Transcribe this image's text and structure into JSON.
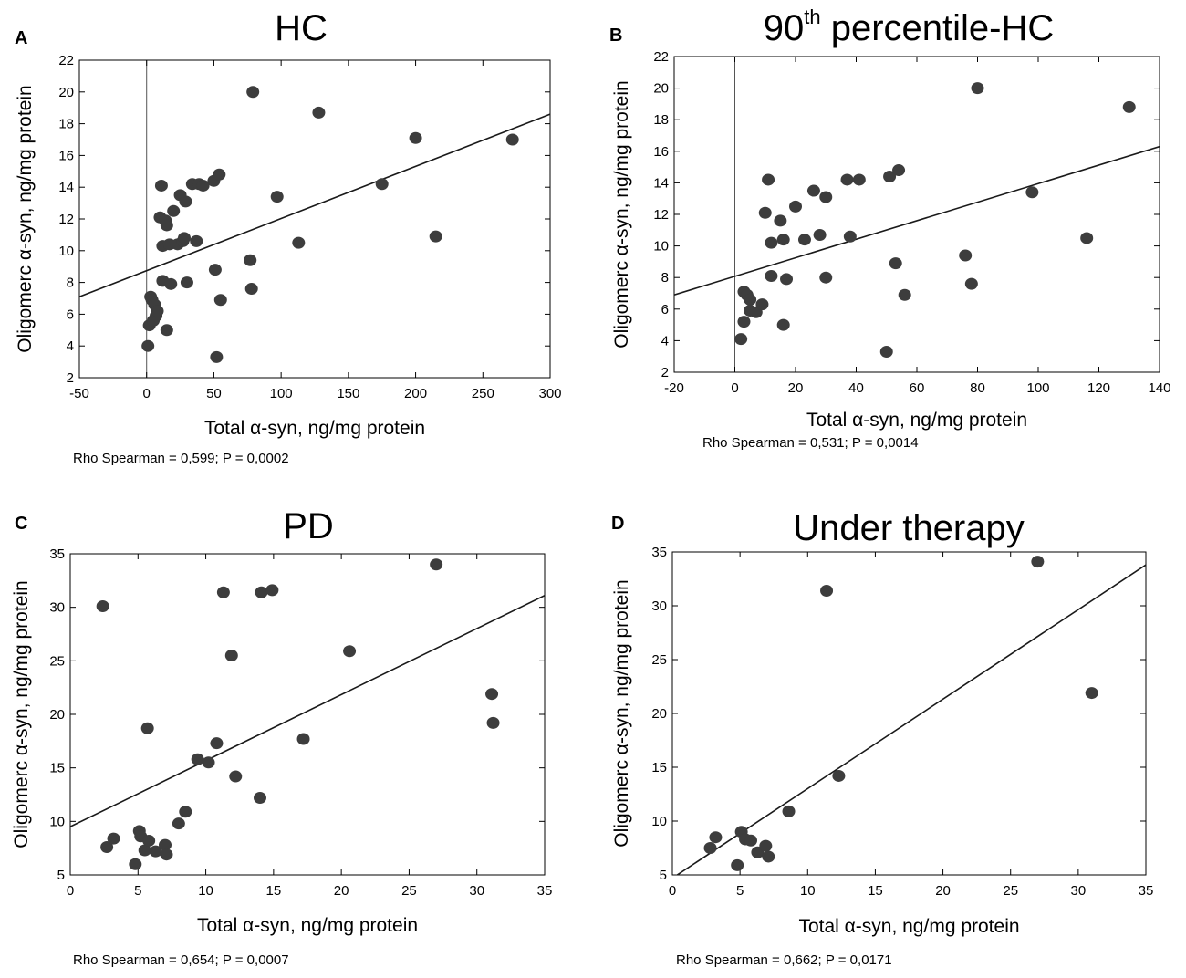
{
  "figure": {
    "background": "#ffffff"
  },
  "style": {
    "point_color": "#3d3d3d",
    "line_color": "#1a1a1a"
  },
  "chart_data": [
    {
      "type": "scatter",
      "panel": "A",
      "title": "HC",
      "title_superscript": "",
      "title_suffix": "",
      "xlabel": "Total α-syn, ng/mg protein",
      "ylabel": "Oligomerc α-syn, ng/mg protein",
      "xlim": [
        -50,
        300
      ],
      "ylim": [
        2,
        22
      ],
      "xticks": [
        -50,
        0,
        50,
        100,
        150,
        200,
        250,
        300
      ],
      "yticks": [
        2,
        4,
        6,
        8,
        10,
        12,
        14,
        16,
        18,
        20,
        22
      ],
      "zero_line_x": 0,
      "grid": false,
      "annotation": "Rho Spearman = 0,599; P = 0,0002",
      "regression": {
        "x": [
          -50,
          300
        ],
        "y": [
          7.1,
          18.6
        ]
      },
      "points": [
        [
          1,
          4.0
        ],
        [
          2,
          5.3
        ],
        [
          3,
          7.1
        ],
        [
          4,
          6.9
        ],
        [
          5,
          5.6
        ],
        [
          6,
          6.6
        ],
        [
          7,
          5.9
        ],
        [
          8,
          6.2
        ],
        [
          10,
          12.1
        ],
        [
          11,
          14.1
        ],
        [
          12,
          10.3
        ],
        [
          12,
          8.1
        ],
        [
          14,
          11.9
        ],
        [
          15,
          11.6
        ],
        [
          15,
          5.0
        ],
        [
          17,
          10.4
        ],
        [
          18,
          7.9
        ],
        [
          20,
          12.5
        ],
        [
          23,
          10.4
        ],
        [
          25,
          13.5
        ],
        [
          27,
          10.6
        ],
        [
          28,
          10.8
        ],
        [
          29,
          13.1
        ],
        [
          30,
          8.0
        ],
        [
          34,
          14.2
        ],
        [
          37,
          10.6
        ],
        [
          39,
          14.2
        ],
        [
          42,
          14.1
        ],
        [
          50,
          14.4
        ],
        [
          51,
          8.8
        ],
        [
          52,
          3.3
        ],
        [
          54,
          14.8
        ],
        [
          55,
          6.9
        ],
        [
          77,
          9.4
        ],
        [
          78,
          7.6
        ],
        [
          79,
          20.0
        ],
        [
          97,
          13.4
        ],
        [
          113,
          10.5
        ],
        [
          128,
          18.7
        ],
        [
          175,
          14.2
        ],
        [
          200,
          17.1
        ],
        [
          215,
          10.9
        ],
        [
          272,
          17.0
        ]
      ]
    },
    {
      "type": "scatter",
      "panel": "B",
      "title": "90",
      "title_superscript": "th",
      "title_suffix": " percentile-HC",
      "xlabel": "Total α-syn, ng/mg protein",
      "ylabel": "Oligomerc α-syn, ng/mg protein",
      "xlim": [
        -20,
        140
      ],
      "ylim": [
        2,
        22
      ],
      "xticks": [
        -20,
        0,
        20,
        40,
        60,
        80,
        100,
        120,
        140
      ],
      "yticks": [
        2,
        4,
        6,
        8,
        10,
        12,
        14,
        16,
        18,
        20,
        22
      ],
      "zero_line_x": 0,
      "grid": false,
      "annotation": "Rho Spearman = 0,531; P = 0,0014",
      "regression": {
        "x": [
          -20,
          140
        ],
        "y": [
          6.9,
          16.3
        ]
      },
      "points": [
        [
          2,
          4.1
        ],
        [
          3,
          7.1
        ],
        [
          3,
          5.2
        ],
        [
          4,
          6.9
        ],
        [
          5,
          6.6
        ],
        [
          5,
          5.9
        ],
        [
          7,
          5.8
        ],
        [
          9,
          6.3
        ],
        [
          10,
          12.1
        ],
        [
          11,
          14.2
        ],
        [
          12,
          8.1
        ],
        [
          12,
          10.2
        ],
        [
          15,
          11.6
        ],
        [
          16,
          5.0
        ],
        [
          16,
          10.4
        ],
        [
          17,
          7.9
        ],
        [
          20,
          12.5
        ],
        [
          23,
          10.4
        ],
        [
          26,
          13.5
        ],
        [
          28,
          10.7
        ],
        [
          30,
          13.1
        ],
        [
          30,
          8.0
        ],
        [
          37,
          14.2
        ],
        [
          38,
          10.6
        ],
        [
          41,
          14.2
        ],
        [
          50,
          3.3
        ],
        [
          51,
          14.4
        ],
        [
          53,
          8.9
        ],
        [
          54,
          14.8
        ],
        [
          56,
          6.9
        ],
        [
          76,
          9.4
        ],
        [
          78,
          7.6
        ],
        [
          80,
          20.0
        ],
        [
          98,
          13.4
        ],
        [
          116,
          10.5
        ],
        [
          130,
          18.8
        ]
      ]
    },
    {
      "type": "scatter",
      "panel": "C",
      "title": "PD",
      "title_superscript": "",
      "title_suffix": "",
      "xlabel": "Total α-syn, ng/mg protein",
      "ylabel": "Oligomerc α-syn, ng/mg protein",
      "xlim": [
        0,
        35
      ],
      "ylim": [
        5,
        35
      ],
      "xticks": [
        0,
        5,
        10,
        15,
        20,
        25,
        30,
        35
      ],
      "yticks": [
        5,
        10,
        15,
        20,
        25,
        30,
        35
      ],
      "zero_line_x": null,
      "grid": false,
      "annotation": "Rho Spearman = 0,654; P = 0,0007",
      "regression": {
        "x": [
          0,
          35
        ],
        "y": [
          9.5,
          31.1
        ]
      },
      "points": [
        [
          2.4,
          30.1
        ],
        [
          2.7,
          7.6
        ],
        [
          3.2,
          8.4
        ],
        [
          4.8,
          6.0
        ],
        [
          5.1,
          9.1
        ],
        [
          5.2,
          8.6
        ],
        [
          5.5,
          7.3
        ],
        [
          5.7,
          18.7
        ],
        [
          5.8,
          8.2
        ],
        [
          6.3,
          7.2
        ],
        [
          7.0,
          7.8
        ],
        [
          7.1,
          6.9
        ],
        [
          8.0,
          9.8
        ],
        [
          8.5,
          10.9
        ],
        [
          9.4,
          15.8
        ],
        [
          10.2,
          15.5
        ],
        [
          10.8,
          17.3
        ],
        [
          11.3,
          31.4
        ],
        [
          11.9,
          25.5
        ],
        [
          12.2,
          14.2
        ],
        [
          14.0,
          12.2
        ],
        [
          14.1,
          31.4
        ],
        [
          14.9,
          31.6
        ],
        [
          17.2,
          17.7
        ],
        [
          20.6,
          25.9
        ],
        [
          27.0,
          34.0
        ],
        [
          31.1,
          21.9
        ],
        [
          31.2,
          19.2
        ]
      ]
    },
    {
      "type": "scatter",
      "panel": "D",
      "title": "Under therapy",
      "title_superscript": "",
      "title_suffix": "",
      "xlabel": "Total α-syn, ng/mg protein",
      "ylabel": "Oligomerc α-syn, ng/mg protein",
      "xlim": [
        0,
        35
      ],
      "ylim": [
        5,
        35
      ],
      "xticks": [
        0,
        5,
        10,
        15,
        20,
        25,
        30,
        35
      ],
      "yticks": [
        5,
        10,
        15,
        20,
        25,
        30,
        35
      ],
      "zero_line_x": null,
      "grid": false,
      "annotation": "Rho Spearman = 0,662; P = 0,0171",
      "regression": {
        "x": [
          0,
          35
        ],
        "y": [
          4.7,
          33.8
        ]
      },
      "points": [
        [
          2.8,
          7.5
        ],
        [
          3.2,
          8.5
        ],
        [
          4.8,
          5.9
        ],
        [
          5.1,
          9.0
        ],
        [
          5.4,
          8.3
        ],
        [
          5.8,
          8.2
        ],
        [
          6.3,
          7.1
        ],
        [
          6.9,
          7.7
        ],
        [
          7.1,
          6.7
        ],
        [
          8.6,
          10.9
        ],
        [
          11.4,
          31.4
        ],
        [
          12.3,
          14.2
        ],
        [
          27.0,
          34.1
        ],
        [
          31.0,
          21.9
        ]
      ]
    }
  ]
}
